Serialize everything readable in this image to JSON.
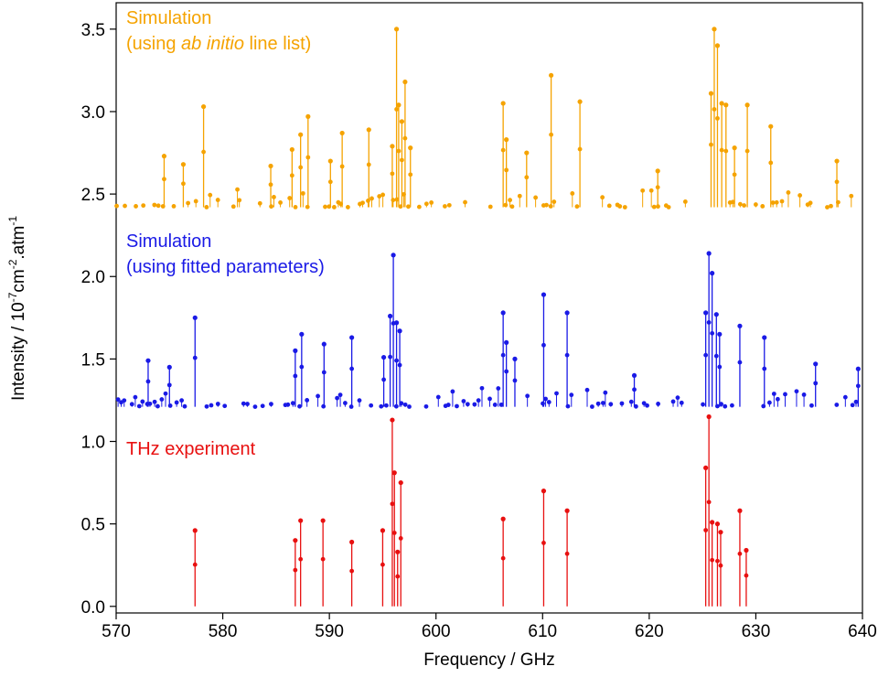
{
  "chart_data": {
    "type": "line",
    "subtype": "stick-spectrum",
    "xlabel": "Frequency / GHz",
    "ylabel": "Intensity / 10",
    "ylabel_sup1": "-7",
    "ylabel_mid": "cm",
    "ylabel_sup2": "-2",
    "ylabel_tail": ".atm",
    "ylabel_sup3": "-1",
    "xlim": [
      570,
      640
    ],
    "ylim": [
      -0.04,
      3.66
    ],
    "xticks": [
      570,
      580,
      590,
      600,
      610,
      620,
      630,
      640
    ],
    "yticks": [
      0.0,
      0.5,
      1.0,
      1.5,
      2.0,
      2.5,
      3.0,
      3.5
    ],
    "ytick_labels": [
      "0.0",
      "0.5",
      "1.0",
      "1.5",
      "2.0",
      "2.5",
      "3.0",
      "3.5"
    ],
    "grid": false,
    "series": [
      {
        "name": "Simulation (using ab initio line list)",
        "label_line1": "Simulation",
        "label_line2_pre": "(using ",
        "label_line2_italic": "ab initio",
        "label_line2_post": " line list)",
        "color": "#f5a300",
        "baseline": 2.42,
        "peaks": [
          [
            574.5,
            2.73
          ],
          [
            576.3,
            2.68
          ],
          [
            578.2,
            3.03
          ],
          [
            584.5,
            2.67
          ],
          [
            586.5,
            2.77
          ],
          [
            587.3,
            2.86
          ],
          [
            588.0,
            2.97
          ],
          [
            590.1,
            2.7
          ],
          [
            591.2,
            2.87
          ],
          [
            593.7,
            2.89
          ],
          [
            595.9,
            2.79
          ],
          [
            596.3,
            3.5
          ],
          [
            596.5,
            3.04
          ],
          [
            596.8,
            2.94
          ],
          [
            597.1,
            3.18
          ],
          [
            597.6,
            2.78
          ],
          [
            606.3,
            3.05
          ],
          [
            606.6,
            2.83
          ],
          [
            608.5,
            2.75
          ],
          [
            610.8,
            3.22
          ],
          [
            613.5,
            3.06
          ],
          [
            620.8,
            2.64
          ],
          [
            625.8,
            3.11
          ],
          [
            626.1,
            3.5
          ],
          [
            626.4,
            3.4
          ],
          [
            626.8,
            3.05
          ],
          [
            627.2,
            3.04
          ],
          [
            628.0,
            2.78
          ],
          [
            629.2,
            3.04
          ],
          [
            631.4,
            2.91
          ],
          [
            637.6,
            2.7
          ]
        ]
      },
      {
        "name": "Simulation (using fitted parameters)",
        "label_line1": "Simulation",
        "label_line2": "(using fitted parameters)",
        "color": "#1a1ae6",
        "baseline": 1.21,
        "peaks": [
          [
            573.0,
            1.49
          ],
          [
            575.0,
            1.45
          ],
          [
            577.4,
            1.75
          ],
          [
            586.8,
            1.55
          ],
          [
            587.4,
            1.65
          ],
          [
            589.5,
            1.59
          ],
          [
            592.1,
            1.63
          ],
          [
            595.1,
            1.51
          ],
          [
            595.7,
            1.76
          ],
          [
            596.0,
            2.13
          ],
          [
            596.3,
            1.72
          ],
          [
            596.6,
            1.67
          ],
          [
            606.3,
            1.78
          ],
          [
            606.6,
            1.6
          ],
          [
            607.4,
            1.5
          ],
          [
            610.1,
            1.89
          ],
          [
            612.3,
            1.78
          ],
          [
            618.6,
            1.4
          ],
          [
            625.3,
            1.78
          ],
          [
            625.6,
            2.14
          ],
          [
            625.9,
            2.02
          ],
          [
            626.3,
            1.77
          ],
          [
            626.6,
            1.65
          ],
          [
            628.5,
            1.7
          ],
          [
            630.8,
            1.63
          ],
          [
            635.6,
            1.47
          ],
          [
            639.6,
            1.44
          ]
        ]
      },
      {
        "name": "THz experiment",
        "label_line1": "THz experiment",
        "color": "#e81010",
        "baseline": 0.0,
        "peaks": [
          [
            577.4,
            0.46
          ],
          [
            586.8,
            0.4
          ],
          [
            587.3,
            0.52
          ],
          [
            589.4,
            0.52
          ],
          [
            592.1,
            0.39
          ],
          [
            595.0,
            0.46
          ],
          [
            595.9,
            1.13
          ],
          [
            596.1,
            0.81
          ],
          [
            596.4,
            0.33
          ],
          [
            596.7,
            0.75
          ],
          [
            606.3,
            0.53
          ],
          [
            610.1,
            0.7
          ],
          [
            612.3,
            0.58
          ],
          [
            625.3,
            0.84
          ],
          [
            625.6,
            1.15
          ],
          [
            625.9,
            0.51
          ],
          [
            626.4,
            0.5
          ],
          [
            626.7,
            0.45
          ],
          [
            628.5,
            0.58
          ],
          [
            629.1,
            0.34
          ]
        ]
      }
    ]
  }
}
